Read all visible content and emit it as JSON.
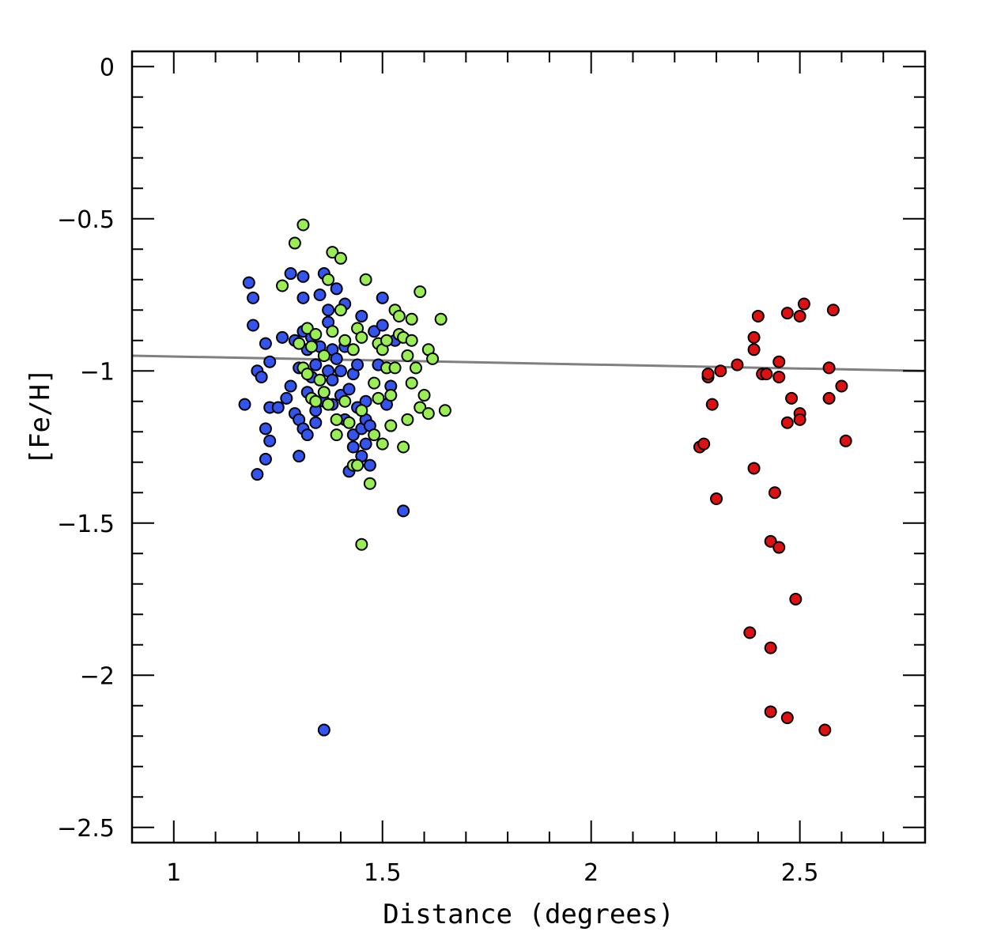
{
  "chart_data": {
    "type": "scatter",
    "xlabel": "Distance (degrees)",
    "ylabel": "[Fe/H]",
    "xlim": [
      0.9,
      2.8
    ],
    "ylim": [
      -2.55,
      0.05
    ],
    "x_ticks": [
      1,
      1.5,
      2,
      2.5
    ],
    "x_tick_labels": [
      "1",
      "1.5",
      "2",
      "2.5"
    ],
    "y_ticks": [
      0,
      -0.5,
      -1,
      -1.5,
      -2,
      -2.5
    ],
    "y_tick_labels": [
      "0",
      "−0.5",
      "−1",
      "−1.5",
      "−2",
      "−2.5"
    ],
    "grid": false,
    "legend": "none",
    "trend_line": {
      "x": [
        0.9,
        2.8
      ],
      "y": [
        -0.95,
        -1.0
      ],
      "color": "#808080"
    },
    "series": [
      {
        "color": "#3355ee",
        "points": [
          [
            1.17,
            -1.11
          ],
          [
            1.18,
            -0.71
          ],
          [
            1.19,
            -0.76
          ],
          [
            1.19,
            -0.85
          ],
          [
            1.2,
            -1.34
          ],
          [
            1.2,
            -1.0
          ],
          [
            1.21,
            -1.02
          ],
          [
            1.22,
            -0.91
          ],
          [
            1.22,
            -1.19
          ],
          [
            1.22,
            -1.29
          ],
          [
            1.23,
            -1.23
          ],
          [
            1.23,
            -1.12
          ],
          [
            1.23,
            -0.97
          ],
          [
            1.25,
            -1.12
          ],
          [
            1.26,
            -0.89
          ],
          [
            1.27,
            -1.09
          ],
          [
            1.28,
            -0.68
          ],
          [
            1.28,
            -1.05
          ],
          [
            1.29,
            -1.14
          ],
          [
            1.29,
            -0.9
          ],
          [
            1.3,
            -1.16
          ],
          [
            1.3,
            -0.99
          ],
          [
            1.3,
            -1.28
          ],
          [
            1.31,
            -1.19
          ],
          [
            1.31,
            -0.87
          ],
          [
            1.31,
            -0.76
          ],
          [
            1.31,
            -0.69
          ],
          [
            1.32,
            -1.21
          ],
          [
            1.32,
            -1.07
          ],
          [
            1.32,
            -0.93
          ],
          [
            1.33,
            -1.02
          ],
          [
            1.33,
            -0.89
          ],
          [
            1.34,
            -0.98
          ],
          [
            1.34,
            -1.13
          ],
          [
            1.34,
            -1.17
          ],
          [
            1.35,
            -0.75
          ],
          [
            1.35,
            -0.92
          ],
          [
            1.36,
            -0.68
          ],
          [
            1.36,
            -1.1
          ],
          [
            1.36,
            -2.18
          ],
          [
            1.37,
            -0.8
          ],
          [
            1.37,
            -0.84
          ],
          [
            1.37,
            -1.0
          ],
          [
            1.38,
            -0.93
          ],
          [
            1.38,
            -1.03
          ],
          [
            1.38,
            -1.11
          ],
          [
            1.39,
            -0.73
          ],
          [
            1.39,
            -0.96
          ],
          [
            1.4,
            -1.08
          ],
          [
            1.4,
            -1.0
          ],
          [
            1.41,
            -0.78
          ],
          [
            1.41,
            -0.92
          ],
          [
            1.41,
            -1.16
          ],
          [
            1.42,
            -1.33
          ],
          [
            1.42,
            -1.06
          ],
          [
            1.43,
            -1.01
          ],
          [
            1.43,
            -1.21
          ],
          [
            1.43,
            -1.25
          ],
          [
            1.44,
            -0.98
          ],
          [
            1.44,
            -1.12
          ],
          [
            1.45,
            -0.82
          ],
          [
            1.45,
            -1.28
          ],
          [
            1.45,
            -1.19
          ],
          [
            1.46,
            -1.16
          ],
          [
            1.46,
            -1.1
          ],
          [
            1.46,
            -1.24
          ],
          [
            1.47,
            -1.31
          ],
          [
            1.47,
            -1.18
          ],
          [
            1.48,
            -0.87
          ],
          [
            1.49,
            -0.98
          ],
          [
            1.5,
            -0.76
          ],
          [
            1.5,
            -0.85
          ],
          [
            1.51,
            -1.11
          ],
          [
            1.52,
            -1.05
          ],
          [
            1.53,
            -0.9
          ],
          [
            1.55,
            -1.46
          ]
        ]
      },
      {
        "color": "#99ee55",
        "points": [
          [
            1.26,
            -0.72
          ],
          [
            1.29,
            -0.58
          ],
          [
            1.3,
            -0.91
          ],
          [
            1.31,
            -0.52
          ],
          [
            1.31,
            -0.99
          ],
          [
            1.32,
            -0.86
          ],
          [
            1.32,
            -1.01
          ],
          [
            1.33,
            -0.92
          ],
          [
            1.33,
            -1.09
          ],
          [
            1.34,
            -0.88
          ],
          [
            1.34,
            -1.1
          ],
          [
            1.35,
            -1.03
          ],
          [
            1.36,
            -0.95
          ],
          [
            1.36,
            -1.07
          ],
          [
            1.37,
            -0.7
          ],
          [
            1.37,
            -1.11
          ],
          [
            1.38,
            -0.87
          ],
          [
            1.38,
            -0.61
          ],
          [
            1.39,
            -1.16
          ],
          [
            1.39,
            -1.21
          ],
          [
            1.4,
            -0.8
          ],
          [
            1.4,
            -0.63
          ],
          [
            1.41,
            -0.9
          ],
          [
            1.41,
            -1.1
          ],
          [
            1.42,
            -1.17
          ],
          [
            1.43,
            -1.31
          ],
          [
            1.43,
            -0.93
          ],
          [
            1.44,
            -0.86
          ],
          [
            1.44,
            -1.31
          ],
          [
            1.45,
            -0.89
          ],
          [
            1.45,
            -1.13
          ],
          [
            1.45,
            -1.57
          ],
          [
            1.46,
            -0.7
          ],
          [
            1.47,
            -1.37
          ],
          [
            1.48,
            -1.21
          ],
          [
            1.48,
            -1.04
          ],
          [
            1.49,
            -1.09
          ],
          [
            1.49,
            -0.91
          ],
          [
            1.5,
            -1.24
          ],
          [
            1.5,
            -0.93
          ],
          [
            1.51,
            -0.99
          ],
          [
            1.51,
            -0.9
          ],
          [
            1.52,
            -1.08
          ],
          [
            1.52,
            -1.18
          ],
          [
            1.53,
            -0.99
          ],
          [
            1.53,
            -0.8
          ],
          [
            1.54,
            -0.88
          ],
          [
            1.54,
            -0.82
          ],
          [
            1.55,
            -1.25
          ],
          [
            1.55,
            -0.89
          ],
          [
            1.56,
            -1.16
          ],
          [
            1.56,
            -0.95
          ],
          [
            1.57,
            -0.83
          ],
          [
            1.57,
            -0.9
          ],
          [
            1.57,
            -1.04
          ],
          [
            1.58,
            -0.99
          ],
          [
            1.59,
            -0.74
          ],
          [
            1.59,
            -1.12
          ],
          [
            1.6,
            -1.08
          ],
          [
            1.61,
            -1.14
          ],
          [
            1.61,
            -0.93
          ],
          [
            1.62,
            -0.96
          ],
          [
            1.64,
            -0.83
          ],
          [
            1.65,
            -1.13
          ]
        ]
      },
      {
        "color": "#dd1111",
        "points": [
          [
            2.26,
            -1.25
          ],
          [
            2.27,
            -1.24
          ],
          [
            2.28,
            -1.02
          ],
          [
            2.28,
            -1.01
          ],
          [
            2.29,
            -1.11
          ],
          [
            2.3,
            -1.42
          ],
          [
            2.31,
            -1.0
          ],
          [
            2.35,
            -0.98
          ],
          [
            2.38,
            -1.86
          ],
          [
            2.39,
            -1.32
          ],
          [
            2.39,
            -0.89
          ],
          [
            2.39,
            -0.93
          ],
          [
            2.4,
            -0.82
          ],
          [
            2.41,
            -1.01
          ],
          [
            2.42,
            -1.01
          ],
          [
            2.43,
            -1.91
          ],
          [
            2.43,
            -1.56
          ],
          [
            2.43,
            -2.12
          ],
          [
            2.44,
            -1.4
          ],
          [
            2.45,
            -1.02
          ],
          [
            2.45,
            -0.97
          ],
          [
            2.45,
            -1.58
          ],
          [
            2.47,
            -2.14
          ],
          [
            2.47,
            -0.81
          ],
          [
            2.47,
            -1.17
          ],
          [
            2.48,
            -1.09
          ],
          [
            2.49,
            -1.75
          ],
          [
            2.5,
            -0.82
          ],
          [
            2.5,
            -1.14
          ],
          [
            2.5,
            -1.16
          ],
          [
            2.51,
            -0.78
          ],
          [
            2.56,
            -2.18
          ],
          [
            2.57,
            -1.09
          ],
          [
            2.57,
            -0.99
          ],
          [
            2.58,
            -0.8
          ],
          [
            2.6,
            -1.05
          ],
          [
            2.61,
            -1.23
          ]
        ]
      }
    ]
  }
}
